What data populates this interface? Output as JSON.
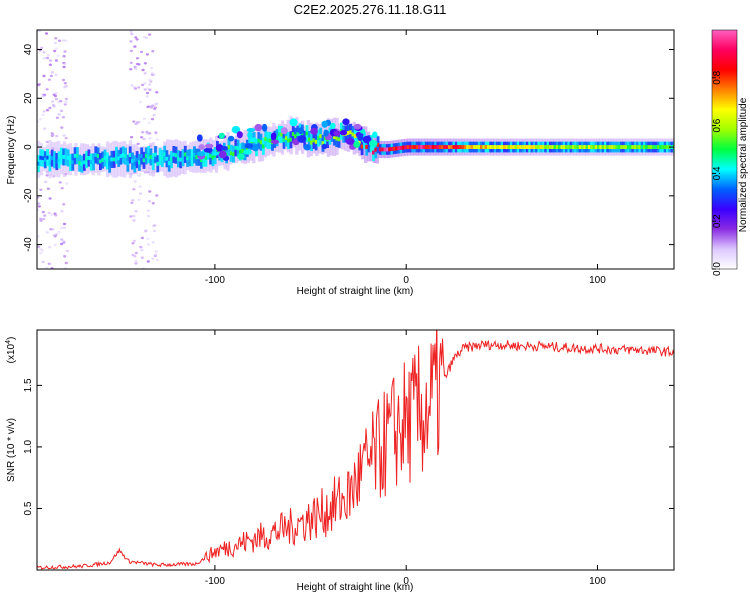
{
  "title": "C2E2.2025.276.11.18.G11",
  "colors": {
    "snr_line": "#ee2222",
    "colorbar_stops": [
      "#ffffff",
      "#dcc8ff",
      "#8a2be2",
      "#3a00ff",
      "#0060ff",
      "#00ffff",
      "#00ff40",
      "#a0ff00",
      "#ffff00",
      "#ff8000",
      "#ff0000",
      "#ff0060",
      "#ff60c0"
    ]
  },
  "chart_data": [
    {
      "type": "heatmap",
      "name": "spectrogram",
      "xlabel": "Height of straight line (km)",
      "ylabel": "Frequency (Hz)",
      "xlim": [
        -193,
        140
      ],
      "ylim": [
        -50,
        48
      ],
      "xticks": [
        -100,
        0,
        100
      ],
      "xtick_labels": [
        "-100",
        "0",
        "100"
      ],
      "yticks": [
        -40,
        -20,
        0,
        20,
        40
      ],
      "ytick_labels": [
        "-40",
        "-20",
        "0",
        "20",
        "40"
      ],
      "colorbar": {
        "label": "Normalized spectral amplitude",
        "range": [
          0,
          1
        ],
        "ticks": [
          0,
          0.2,
          0.4,
          0.6,
          0.8
        ],
        "tick_labels": [
          "0.0",
          "0.2",
          "0.4",
          "0.6",
          "0.8"
        ]
      },
      "ridge": {
        "x": [
          -193,
          -170,
          -150,
          -130,
          -110,
          -100,
          -90,
          -80,
          -70,
          -60,
          -50,
          -40,
          -32,
          -26,
          -22,
          -18,
          -10,
          0,
          10,
          20,
          40,
          60,
          80,
          100,
          120,
          140
        ],
        "frequency": [
          -5,
          -5,
          -5,
          -5,
          -4,
          -3,
          -1,
          1,
          3,
          5,
          3,
          4,
          5,
          3,
          1,
          -1,
          -1,
          0,
          0,
          0,
          0,
          0,
          0,
          0,
          0,
          0
        ],
        "amplitude": [
          0.35,
          0.45,
          0.4,
          0.45,
          0.45,
          0.5,
          0.5,
          0.55,
          0.5,
          0.55,
          0.55,
          0.6,
          0.6,
          0.65,
          0.8,
          0.95,
          0.95,
          0.9,
          0.9,
          0.85,
          0.7,
          0.65,
          0.6,
          0.6,
          0.55,
          0.5
        ]
      }
    },
    {
      "type": "line",
      "name": "snr",
      "xlabel": "Height of straight line (km)",
      "ylabel": "SNR (10 * v/v)",
      "multiplier_label": "(x10",
      "multiplier_exp": "4",
      "multiplier_close": ")",
      "xlim": [
        -193,
        140
      ],
      "ylim": [
        0,
        1.95
      ],
      "xticks": [
        -100,
        0,
        100
      ],
      "xtick_labels": [
        "-100",
        "0",
        "100"
      ],
      "yticks": [
        0.5,
        1.0,
        1.5
      ],
      "ytick_labels": [
        "0.5",
        "1.0",
        "1.5"
      ],
      "series": [
        {
          "name": "SNR",
          "x": [
            -193,
            -170,
            -155,
            -150,
            -145,
            -130,
            -110,
            -100,
            -90,
            -80,
            -70,
            -60,
            -50,
            -45,
            -40,
            -30,
            -25,
            -20,
            -15,
            -10,
            -5,
            0,
            5,
            10,
            15,
            20,
            25,
            30,
            40,
            50,
            60,
            70,
            80,
            90,
            100,
            110,
            120,
            130,
            140
          ],
          "y": [
            0.02,
            0.03,
            0.06,
            0.16,
            0.07,
            0.04,
            0.05,
            0.15,
            0.2,
            0.25,
            0.3,
            0.35,
            0.42,
            0.45,
            0.5,
            0.6,
            0.75,
            0.85,
            0.95,
            1.05,
            1.15,
            1.2,
            1.25,
            1.3,
            1.4,
            1.55,
            1.72,
            1.8,
            1.83,
            1.83,
            1.82,
            1.82,
            1.81,
            1.8,
            1.8,
            1.79,
            1.79,
            1.78,
            1.77
          ]
        }
      ]
    }
  ]
}
